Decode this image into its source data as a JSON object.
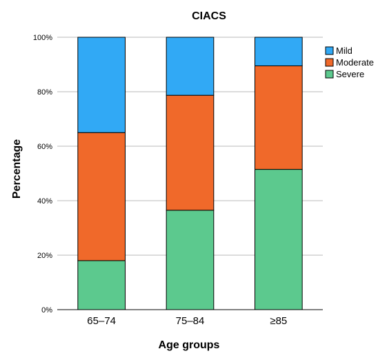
{
  "chart_data": {
    "type": "bar",
    "stacked": true,
    "title": "CIACS",
    "xlabel": "Age groups",
    "ylabel": "Percentage",
    "categories": [
      "65–74",
      "75–84",
      "≥85"
    ],
    "ytick_labels": [
      "0%",
      "20%",
      "40%",
      "60%",
      "80%",
      "100%"
    ],
    "ylim": [
      0,
      100
    ],
    "grid": true,
    "legend_position": "top-right",
    "series": [
      {
        "name": "Severe",
        "color": "#5cc98e",
        "values": [
          18,
          36.5,
          51.5
        ]
      },
      {
        "name": "Moderate",
        "color": "#f0692a",
        "values": [
          47,
          42.2,
          38
        ]
      },
      {
        "name": "Mild",
        "color": "#31a9f5",
        "values": [
          35,
          21.3,
          10.5
        ]
      }
    ],
    "legend_order": [
      "Mild",
      "Moderate",
      "Severe"
    ]
  }
}
